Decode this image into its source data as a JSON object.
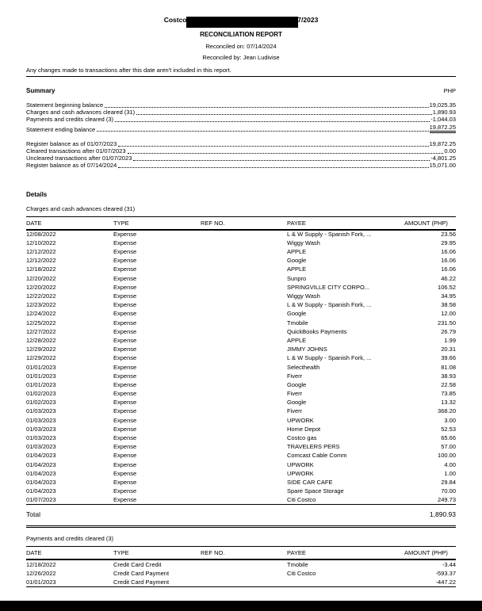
{
  "header": {
    "title": "Costco Business CITI, Period Ending 01/07/2023",
    "subtitle": "RECONCILIATION REPORT",
    "reconciled_on": "Reconciled on: 07/14/2024",
    "reconciled_by": "Reconciled by: Jean Ludivise",
    "notice": "Any changes made to transactions after this date aren't included in this report."
  },
  "summary": {
    "heading": "Summary",
    "currency": "PHP",
    "rows": [
      {
        "label": "Statement beginning balance",
        "value": "19,025.35"
      },
      {
        "label": "Charges and cash advances cleared (31)",
        "value": "1,890.93"
      },
      {
        "label": "Payments and credits cleared (3)",
        "value": "-1,044.03"
      }
    ],
    "final_row": {
      "label": "Statement ending balance",
      "value": "19,872.25"
    },
    "register_rows": [
      {
        "label": "Register balance as of 01/07/2023",
        "value": "19,872.25"
      },
      {
        "label": "Cleared transactions after 01/07/2023",
        "value": "0.00"
      },
      {
        "label": "Uncleared transactions after 01/07/2023",
        "value": "-4,801.25"
      },
      {
        "label": "Register balance as of 07/14/2024",
        "value": "15,071.00"
      }
    ]
  },
  "details": {
    "heading": "Details",
    "charges": {
      "title": "Charges and cash advances cleared (31)",
      "columns": [
        "DATE",
        "TYPE",
        "REF NO.",
        "PAYEE",
        "AMOUNT (PHP)"
      ],
      "rows": [
        {
          "date": "12/08/2022",
          "type": "Expense",
          "ref": "",
          "payee": "L & W Supply - Spanish Fork, ...",
          "amount": "23.56"
        },
        {
          "date": "12/10/2022",
          "type": "Expense",
          "ref": "",
          "payee": "Wiggy Wash",
          "amount": "29.95"
        },
        {
          "date": "12/12/2022",
          "type": "Expense",
          "ref": "",
          "payee": "APPLE",
          "amount": "16.06"
        },
        {
          "date": "12/12/2022",
          "type": "Expense",
          "ref": "",
          "payee": "Google",
          "amount": "16.06"
        },
        {
          "date": "12/18/2022",
          "type": "Expense",
          "ref": "",
          "payee": "APPLE",
          "amount": "16.06"
        },
        {
          "date": "12/20/2022",
          "type": "Expense",
          "ref": "",
          "payee": "Sunpro",
          "amount": "46.22"
        },
        {
          "date": "12/20/2022",
          "type": "Expense",
          "ref": "",
          "payee": "SPRINGVILLE CITY CORPO...",
          "amount": "106.52"
        },
        {
          "date": "12/22/2022",
          "type": "Expense",
          "ref": "",
          "payee": "Wiggy Wash",
          "amount": "34.95"
        },
        {
          "date": "12/23/2022",
          "type": "Expense",
          "ref": "",
          "payee": "L & W Supply - Spanish Fork, ...",
          "amount": "38.58"
        },
        {
          "date": "12/24/2022",
          "type": "Expense",
          "ref": "",
          "payee": "Google",
          "amount": "12.00"
        },
        {
          "date": "12/25/2022",
          "type": "Expense",
          "ref": "",
          "payee": "Tmobile",
          "amount": "231.50"
        },
        {
          "date": "12/27/2022",
          "type": "Expense",
          "ref": "",
          "payee": "QuickBooks Payments",
          "amount": "26.79"
        },
        {
          "date": "12/28/2022",
          "type": "Expense",
          "ref": "",
          "payee": "APPLE",
          "amount": "1.99"
        },
        {
          "date": "12/29/2022",
          "type": "Expense",
          "ref": "",
          "payee": "JIMMY JOHNS",
          "amount": "20.31"
        },
        {
          "date": "12/29/2022",
          "type": "Expense",
          "ref": "",
          "payee": "L & W Supply - Spanish Fork, ...",
          "amount": "39.66"
        },
        {
          "date": "01/01/2023",
          "type": "Expense",
          "ref": "",
          "payee": "Selecthealth",
          "amount": "81.08"
        },
        {
          "date": "01/01/2023",
          "type": "Expense",
          "ref": "",
          "payee": "Fiverr",
          "amount": "38.93"
        },
        {
          "date": "01/01/2023",
          "type": "Expense",
          "ref": "",
          "payee": "Google",
          "amount": "22.58"
        },
        {
          "date": "01/02/2023",
          "type": "Expense",
          "ref": "",
          "payee": "Fiverr",
          "amount": "73.85"
        },
        {
          "date": "01/02/2023",
          "type": "Expense",
          "ref": "",
          "payee": "Google",
          "amount": "13.32"
        },
        {
          "date": "01/03/2023",
          "type": "Expense",
          "ref": "",
          "payee": "Fiverr",
          "amount": "368.20"
        },
        {
          "date": "01/03/2023",
          "type": "Expense",
          "ref": "",
          "payee": "UPWORK",
          "amount": "3.00"
        },
        {
          "date": "01/03/2023",
          "type": "Expense",
          "ref": "",
          "payee": "Home Depot",
          "amount": "52.53"
        },
        {
          "date": "01/03/2023",
          "type": "Expense",
          "ref": "",
          "payee": "Costco gas",
          "amount": "65.66"
        },
        {
          "date": "01/03/2023",
          "type": "Expense",
          "ref": "",
          "payee": "TRAVELERS PERS",
          "amount": "57.00"
        },
        {
          "date": "01/04/2023",
          "type": "Expense",
          "ref": "",
          "payee": "Comcast Cable Comm",
          "amount": "100.00"
        },
        {
          "date": "01/04/2023",
          "type": "Expense",
          "ref": "",
          "payee": "UPWORK",
          "amount": "4.00"
        },
        {
          "date": "01/04/2023",
          "type": "Expense",
          "ref": "",
          "payee": "UPWORK",
          "amount": "1.00"
        },
        {
          "date": "01/04/2023",
          "type": "Expense",
          "ref": "",
          "payee": "SIDE CAR CAFE",
          "amount": "29.84"
        },
        {
          "date": "01/04/2023",
          "type": "Expense",
          "ref": "",
          "payee": "Spare Space Storage",
          "amount": "70.00"
        },
        {
          "date": "01/07/2023",
          "type": "Expense",
          "ref": "",
          "payee": "Citi Costco",
          "amount": "249.73"
        }
      ],
      "total_label": "Total",
      "total_value": "1,890.93"
    },
    "payments": {
      "title": "Payments and credits cleared (3)",
      "columns": [
        "DATE",
        "TYPE",
        "REF NO.",
        "PAYEE",
        "AMOUNT (PHP)"
      ],
      "rows": [
        {
          "date": "12/18/2022",
          "type": "Credit Card Credit",
          "ref": "",
          "payee": "Tmobile",
          "amount": "-3.44"
        },
        {
          "date": "12/26/2022",
          "type": "Credit Card Payment",
          "ref": "",
          "payee": "Citi Costco",
          "amount": "-593.37"
        },
        {
          "date": "01/01/2023",
          "type": "Credit Card Payment",
          "ref": "",
          "payee": "",
          "amount": "-447.22"
        }
      ]
    }
  }
}
